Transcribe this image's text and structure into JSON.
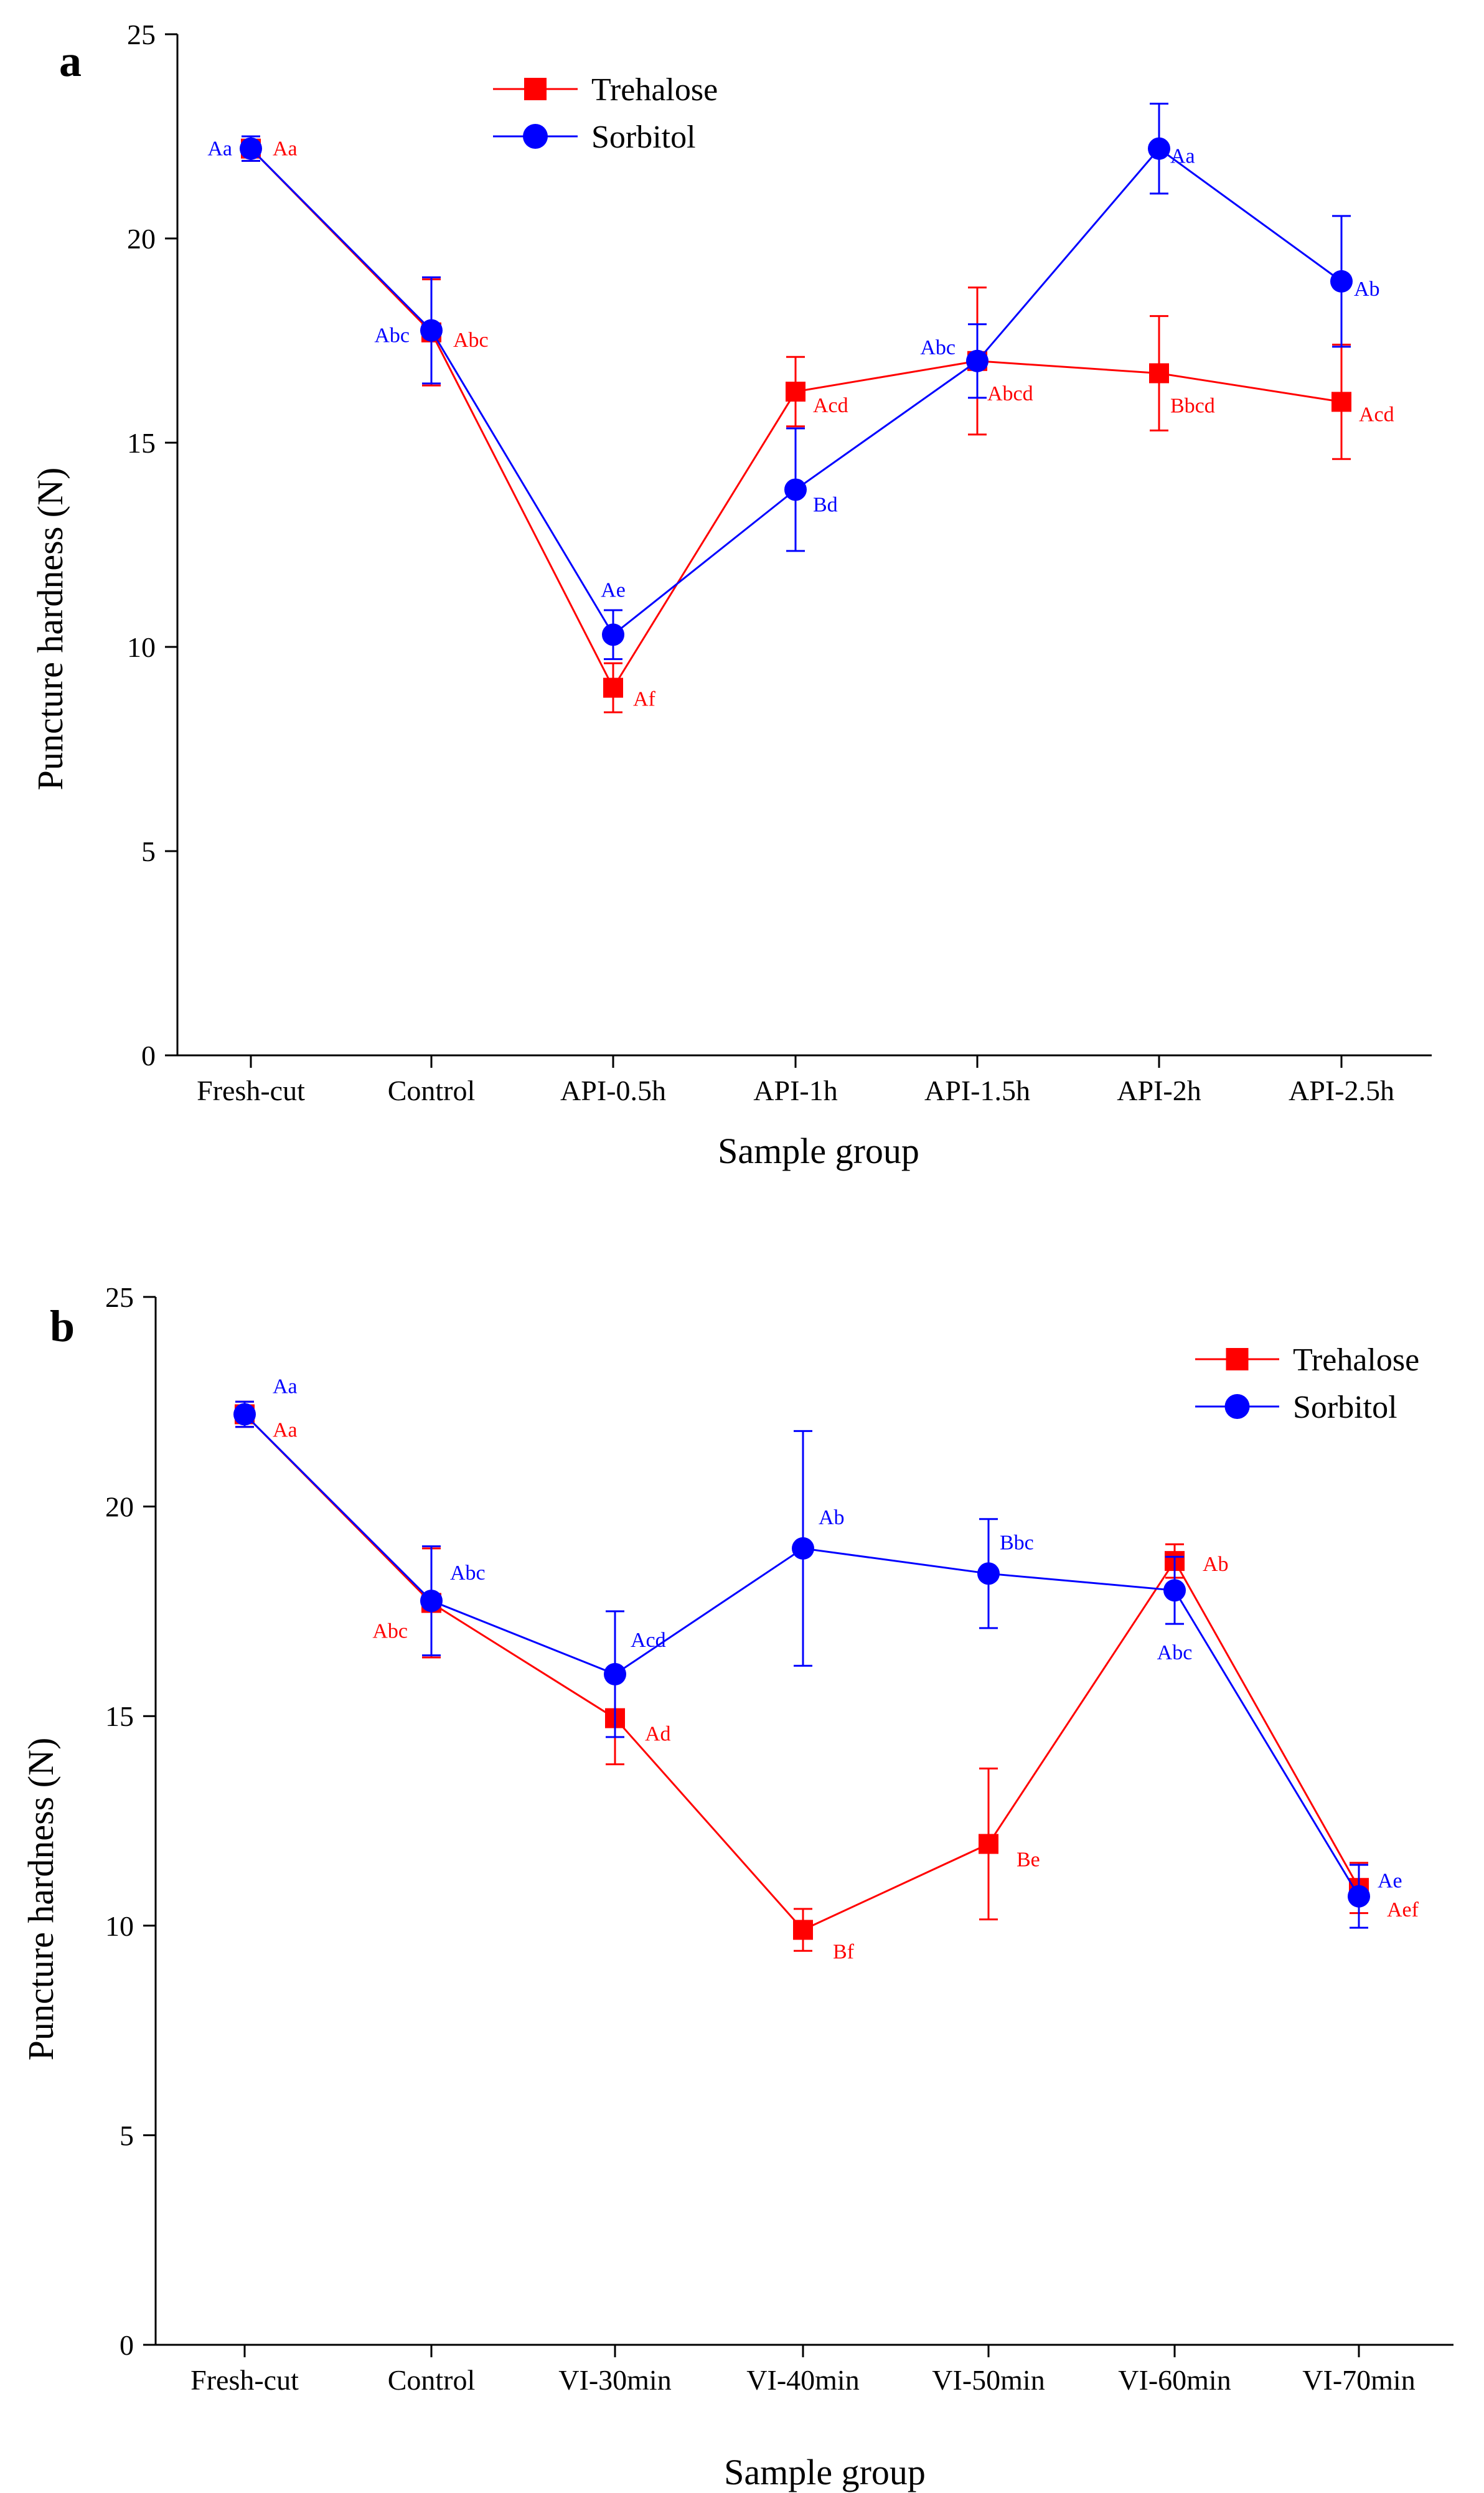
{
  "chart_data": [
    {
      "panel": "a",
      "type": "line",
      "xlabel": "Sample group",
      "ylabel": "Puncture hardness (N)",
      "ylim": [
        0,
        25
      ],
      "yticks": [
        0,
        5,
        10,
        15,
        20,
        25
      ],
      "categories": [
        "Fresh-cut",
        "Control",
        "API-0.5h",
        "API-1h",
        "API-1.5h",
        "API-2h",
        "API-2.5h"
      ],
      "legend_position": "top-center",
      "series": [
        {
          "name": "Trehalose",
          "color": "#ff0000",
          "marker": "square",
          "values": [
            22.2,
            17.7,
            9.0,
            16.25,
            17.0,
            16.7,
            16.0
          ],
          "errors": [
            0.3,
            1.3,
            0.6,
            0.85,
            1.8,
            1.4,
            1.4
          ],
          "labels": [
            "Aa",
            "Abc",
            "Af",
            "Acd",
            "Abcd",
            "Bbcd",
            "Acd"
          ]
        },
        {
          "name": "Sorbitol",
          "color": "#0000ff",
          "marker": "circle",
          "values": [
            22.2,
            17.75,
            10.3,
            13.85,
            17.0,
            22.2,
            18.95
          ],
          "errors": [
            0.3,
            1.3,
            0.6,
            1.5,
            0.9,
            1.1,
            1.6
          ],
          "labels": [
            "Aa",
            "Abc",
            "Ae",
            "Bd",
            "Abc",
            "Aa",
            "Ab"
          ]
        }
      ]
    },
    {
      "panel": "b",
      "type": "line",
      "xlabel": "Sample group",
      "ylabel": "Puncture hardness (N)",
      "ylim": [
        0,
        25
      ],
      "yticks": [
        0,
        5,
        10,
        15,
        20,
        25
      ],
      "categories": [
        "Fresh-cut",
        "Control",
        "VI-30min",
        "VI-40min",
        "VI-50min",
        "VI-60min",
        "VI-70min"
      ],
      "legend_position": "top-right",
      "series": [
        {
          "name": "Trehalose",
          "color": "#ff0000",
          "marker": "square",
          "values": [
            22.2,
            17.7,
            14.95,
            9.9,
            11.95,
            18.7,
            10.9
          ],
          "errors": [
            0.3,
            1.3,
            1.1,
            0.5,
            1.8,
            0.4,
            0.6
          ],
          "labels": [
            "Aa",
            "Abc",
            "Ad",
            "Bf",
            "Be",
            "Ab",
            "Aef"
          ]
        },
        {
          "name": "Sorbitol",
          "color": "#0000ff",
          "marker": "circle",
          "values": [
            22.2,
            17.75,
            16.0,
            19.0,
            18.4,
            18.0,
            10.7
          ],
          "errors": [
            0.3,
            1.3,
            1.5,
            2.8,
            1.3,
            0.8,
            0.75
          ],
          "labels": [
            "Aa",
            "Abc",
            "Acd",
            "Ab",
            "Bbc",
            "Abc",
            "Ae"
          ]
        }
      ]
    }
  ]
}
